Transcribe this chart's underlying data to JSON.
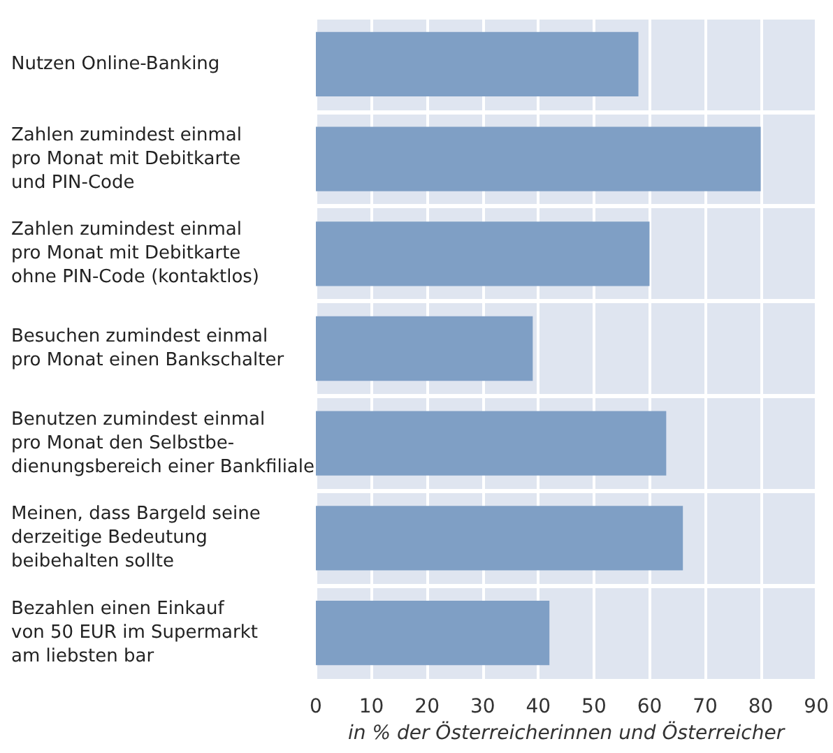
{
  "chart_data": {
    "type": "bar",
    "orientation": "horizontal",
    "categories": [
      "Nutzen Online-Banking",
      "Zahlen zumindest einmal\npro Monat mit Debitkarte\nund PIN-Code",
      "Zahlen zumindest einmal\npro Monat mit Debitkarte\nohne PIN-Code (kontaktlos)",
      "Besuchen zumindest einmal\npro Monat einen Bankschalter",
      "Benutzen zumindest einmal\npro Monat den Selbstbe-\ndienungsbereich einer Bankfiliale",
      "Meinen, dass Bargeld seine\nderzeitige Bedeutung\nbeibehalten sollte",
      "Bezahlen einen Einkauf\nvon 50 EUR im Supermarkt\nam liebsten bar"
    ],
    "values": [
      58,
      80,
      60,
      39,
      63,
      66,
      42
    ],
    "color": "#7f9fc5",
    "xlabel": "in % der Österreicherinnen und Österreicher",
    "xlim": [
      0,
      90
    ],
    "xticks": [
      0,
      10,
      20,
      30,
      40,
      50,
      60,
      70,
      80,
      90
    ],
    "grid": true
  }
}
